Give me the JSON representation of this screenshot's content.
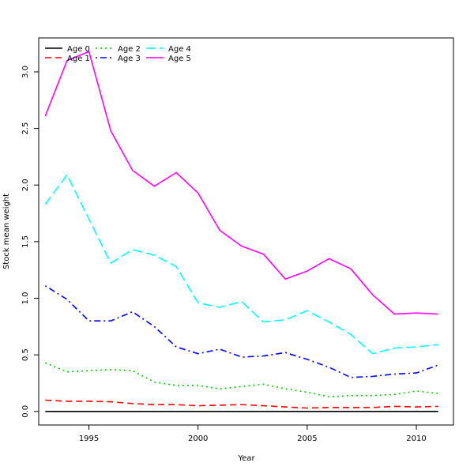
{
  "chart_data": {
    "type": "line",
    "title": "",
    "xlabel": "Year",
    "ylabel": "Stock mean weight",
    "xlim": [
      1992.7,
      2011.7
    ],
    "ylim": [
      -0.12,
      3.3
    ],
    "x_ticks": [
      1995,
      2000,
      2005,
      2010
    ],
    "y_ticks": [
      0.0,
      0.5,
      1.0,
      1.5,
      2.0,
      2.5,
      3.0
    ],
    "y_tick_labels": [
      "0.0",
      "0.5",
      "1.0",
      "1.5",
      "2.0",
      "2.5",
      "3.0"
    ],
    "legend_position": "top-left",
    "grid": false,
    "x": [
      1993,
      1994,
      1995,
      1996,
      1997,
      1998,
      1999,
      2000,
      2001,
      2002,
      2003,
      2004,
      2005,
      2006,
      2007,
      2008,
      2009,
      2010,
      2011
    ],
    "series": [
      {
        "name": "Age 0",
        "color": "#000000",
        "dash": "solid",
        "values": [
          0.0,
          0.0,
          0.0,
          0.0,
          0.0,
          0.0,
          0.0,
          0.0,
          0.0,
          0.0,
          0.0,
          0.0,
          0.0,
          0.0,
          0.0,
          0.0,
          0.0,
          0.0,
          0.0
        ]
      },
      {
        "name": "Age 1",
        "color": "#ff0000",
        "dash": "dashed",
        "values": [
          0.1,
          0.09,
          0.09,
          0.085,
          0.07,
          0.06,
          0.06,
          0.05,
          0.055,
          0.06,
          0.05,
          0.04,
          0.03,
          0.035,
          0.035,
          0.035,
          0.045,
          0.04,
          0.045
        ]
      },
      {
        "name": "Age 2",
        "color": "#00cd00",
        "dash": "dotted",
        "values": [
          0.43,
          0.35,
          0.36,
          0.37,
          0.36,
          0.26,
          0.23,
          0.23,
          0.2,
          0.22,
          0.24,
          0.2,
          0.17,
          0.13,
          0.14,
          0.14,
          0.15,
          0.18,
          0.16
        ]
      },
      {
        "name": "Age 3",
        "color": "#0000ff",
        "dash": "dotdash",
        "values": [
          1.11,
          0.99,
          0.8,
          0.8,
          0.88,
          0.75,
          0.57,
          0.51,
          0.55,
          0.48,
          0.49,
          0.52,
          0.46,
          0.39,
          0.3,
          0.31,
          0.33,
          0.34,
          0.41
        ]
      },
      {
        "name": "Age 4",
        "color": "#00ffff",
        "dash": "longdash",
        "values": [
          1.83,
          2.09,
          1.7,
          1.31,
          1.43,
          1.38,
          1.28,
          0.96,
          0.92,
          0.97,
          0.79,
          0.81,
          0.89,
          0.79,
          0.68,
          0.51,
          0.56,
          0.57,
          0.59
        ]
      },
      {
        "name": "Age 5",
        "color": "#ff00ff",
        "dash": "solid",
        "values": [
          2.61,
          3.1,
          3.18,
          2.48,
          2.13,
          1.99,
          2.11,
          1.93,
          1.6,
          1.46,
          1.39,
          1.17,
          1.24,
          1.35,
          1.26,
          1.03,
          0.86,
          0.87,
          0.86
        ]
      }
    ]
  }
}
